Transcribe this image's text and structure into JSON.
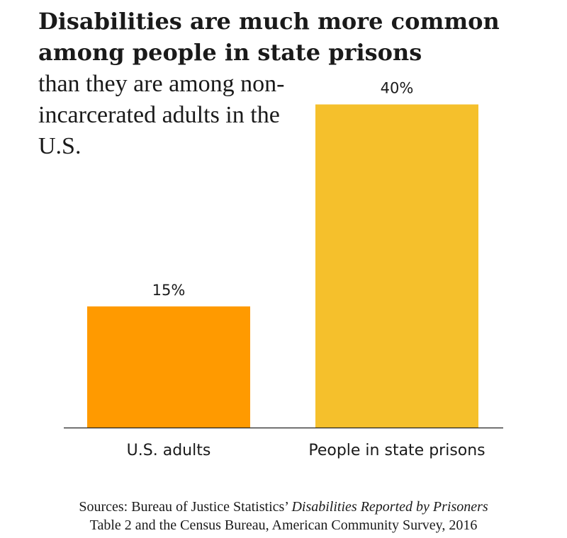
{
  "chart_data": {
    "type": "bar",
    "title": "Disabilities are much more common among people in state prisons",
    "subtitle": "than they are among non-incarcerated adults in the U.S.",
    "categories": [
      "U.S. adults",
      "People in state prisons"
    ],
    "values": [
      15,
      40
    ],
    "value_labels": [
      "15%",
      "40%"
    ],
    "colors": [
      "#FF9A00",
      "#F5C02C"
    ],
    "ylim": [
      0,
      42.5
    ],
    "xlabel": "",
    "ylabel": "",
    "grid": false
  },
  "footer": {
    "prefix": "Sources: Bureau of Justice Statistics’ ",
    "source_title": "Disabilities Reported by Prisoners",
    "line2": "Table 2 and the Census Bureau, American Community Survey, 2016"
  }
}
